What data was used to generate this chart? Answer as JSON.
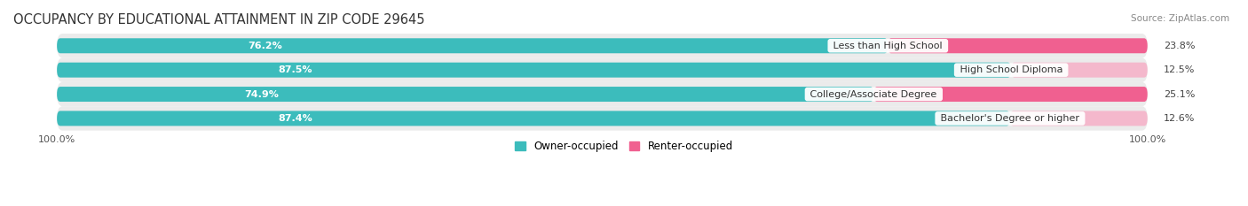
{
  "title": "OCCUPANCY BY EDUCATIONAL ATTAINMENT IN ZIP CODE 29645",
  "source": "Source: ZipAtlas.com",
  "categories": [
    "Less than High School",
    "High School Diploma",
    "College/Associate Degree",
    "Bachelor's Degree or higher"
  ],
  "owner_pct": [
    76.2,
    87.5,
    74.9,
    87.4
  ],
  "renter_pct": [
    23.8,
    12.5,
    25.1,
    12.6
  ],
  "owner_color": "#3cbcbc",
  "renter_color_dark": [
    [
      "#f06090",
      "#f06090",
      "#f06090",
      "#f06090"
    ]
  ],
  "renter_colors": [
    "#f06090",
    "#f4a8c0",
    "#f06090",
    "#f4a8c0"
  ],
  "row_bg_color": "#ebebeb",
  "axis_label_left": "100.0%",
  "axis_label_right": "100.0%",
  "legend_owner": "Owner-occupied",
  "legend_renter": "Renter-occupied",
  "owner_color_hex": "#3cbcbc",
  "renter_color_hex": "#f06090",
  "renter_light_hex": "#f4b8cc",
  "title_fontsize": 10.5,
  "bar_height": 0.62,
  "figsize": [
    14.06,
    2.33
  ],
  "dpi": 100,
  "xlim_left": -5,
  "xlim_right": 105,
  "total_width": 100
}
